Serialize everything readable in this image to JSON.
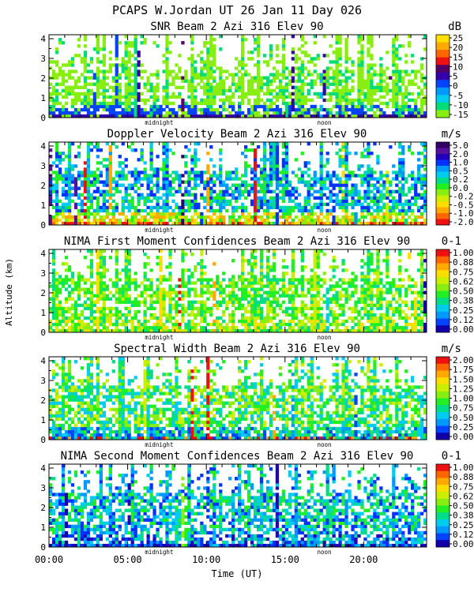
{
  "figure": {
    "title": "PCAPS W.Jordan UT  26 Jan 11 Day 026",
    "xlabel": "Time (UT)",
    "ylabel": "Altitude (km)",
    "x_ticks": [
      "00:00",
      "05:00",
      "10:00",
      "15:00",
      "20:00"
    ],
    "x_tick_hours": [
      0,
      5,
      10,
      15,
      20
    ],
    "y_ticks": [
      "0",
      "1",
      "2",
      "3",
      "4"
    ],
    "markers": [
      "midnight",
      "noon"
    ],
    "marker_hours": [
      7.0,
      17.5
    ]
  },
  "chart_data": [
    {
      "type": "heatmap",
      "title": "SNR Beam 2 Azi 316 Elev 90",
      "unit": "dB",
      "xlim": [
        0,
        24
      ],
      "ylim": [
        0,
        4.2
      ],
      "colorbar_ticks": [
        "25",
        "20",
        "15",
        "10",
        "5",
        "0",
        "-5",
        "-10",
        "-15"
      ],
      "colors": [
        "#88ee11",
        "#00dd77",
        "#00bbff",
        "#0044ff",
        "#3300aa",
        "#550066"
      ],
      "profile": {
        "thr": [
          0.99,
          0.32,
          0.48,
          0.52,
          0.58
        ],
        "bottom": [
          4,
          4,
          4,
          0,
          0
        ],
        "near": [
          3,
          3,
          3,
          1,
          0
        ],
        "mid": [
          1,
          0,
          0,
          0,
          0
        ]
      },
      "lower_top_km": 2.5
    },
    {
      "type": "heatmap",
      "title": "Doppler Velocity Beam 2 Azi 316 Elev 90",
      "unit": "m/s",
      "xlim": [
        0,
        24
      ],
      "ylim": [
        0,
        4.2
      ],
      "colorbar_ticks": [
        "5.0",
        "2.0",
        "1.0",
        "0.5",
        "0.2",
        "0.0",
        "-0.2",
        "-0.5",
        "-1.0",
        "-2.0"
      ],
      "colors": [
        "#330066",
        "#551199",
        "#2200bb",
        "#0033ff",
        "#0099ff",
        "#00ccee",
        "#00dd88",
        "#22ee22",
        "#88ee11",
        "#ccee00",
        "#ffdd00",
        "#ffaa00",
        "#ff6600",
        "#ee1111"
      ],
      "profile": {
        "thr": [
          0.99,
          0.3,
          0.5,
          0.58,
          0.62
        ],
        "bottom": [
          10,
          11,
          8,
          12,
          13
        ],
        "near": [
          8,
          9,
          10,
          7,
          11
        ],
        "mid": [
          5,
          6,
          4,
          7,
          3
        ]
      },
      "lower_top_km": 2.7
    },
    {
      "type": "heatmap",
      "title": "NIMA First Moment Confidences Beam 2 Azi 316 Elev 90",
      "unit": "0-1",
      "xlim": [
        0,
        24
      ],
      "ylim": [
        0,
        4.2
      ],
      "colorbar_ticks": [
        "1.00",
        "0.88",
        "0.75",
        "0.62",
        "0.50",
        "0.38",
        "0.25",
        "0.12",
        "0.00"
      ],
      "colors": [
        "#22ee22",
        "#88ee11",
        "#00dd88",
        "#ccee00",
        "#ffdd00",
        "#ffaa00",
        "#00ccee",
        "#0099ff",
        "#ee1111",
        "#1100aa"
      ],
      "profile": {
        "thr": [
          0.99,
          0.3,
          0.5,
          0.58,
          0.62
        ],
        "bottom": [
          1,
          4,
          2,
          3,
          0
        ],
        "near": [
          0,
          1,
          2,
          4,
          3
        ],
        "mid": [
          0,
          1,
          2,
          0,
          3
        ]
      },
      "lower_top_km": 2.7
    },
    {
      "type": "heatmap",
      "title": "Spectral Width Beam 2 Azi 316 Elev 90",
      "unit": "m/s",
      "xlim": [
        0,
        24
      ],
      "ylim": [
        0,
        4.2
      ],
      "colorbar_ticks": [
        "2.00",
        "1.75",
        "1.50",
        "1.25",
        "1.00",
        "0.75",
        "0.50",
        "0.25",
        "0.00"
      ],
      "colors": [
        "#88ee11",
        "#22ee22",
        "#00dd88",
        "#00ccee",
        "#0099ff",
        "#0044ff",
        "#ccee00",
        "#ffaa00",
        "#ee1111",
        "#1100aa"
      ],
      "profile": {
        "thr": [
          0.99,
          0.3,
          0.5,
          0.58,
          0.62
        ],
        "bottom": [
          8,
          7,
          2,
          3,
          5
        ],
        "near": [
          3,
          4,
          5,
          1,
          2
        ],
        "mid": [
          0,
          1,
          2,
          3,
          6
        ]
      },
      "lower_top_km": 2.7
    },
    {
      "type": "heatmap",
      "title": "NIMA Second Moment Confidences Beam 2 Azi 316 Elev 90",
      "unit": "0-1",
      "xlim": [
        0,
        24
      ],
      "ylim": [
        0,
        4.2
      ],
      "colorbar_ticks": [
        "1.00",
        "0.88",
        "0.75",
        "0.62",
        "0.50",
        "0.38",
        "0.25",
        "0.12",
        "0.00"
      ],
      "colors": [
        "#0033ff",
        "#2200bb",
        "#0099ff",
        "#00ccee",
        "#00dd88",
        "#22ee22",
        "#88ee11",
        "#1100aa"
      ],
      "profile": {
        "thr": [
          0.99,
          0.3,
          0.5,
          0.58,
          0.62
        ],
        "bottom": [
          0,
          1,
          2,
          7,
          3
        ],
        "near": [
          0,
          1,
          2,
          3,
          4
        ],
        "mid": [
          2,
          3,
          0,
          4,
          5
        ]
      },
      "lower_top_km": 2.7
    }
  ],
  "colorbars": [
    [
      "#ffe000",
      "#ffaa00",
      "#ff6600",
      "#ee1111",
      "#550066",
      "#3300aa",
      "#0044ff",
      "#0099ff",
      "#00ccee",
      "#00dd77",
      "#88ee11"
    ],
    [
      "#330066",
      "#551199",
      "#2200bb",
      "#0033ff",
      "#0099ff",
      "#00ccee",
      "#00dd88",
      "#22ee22",
      "#88ee11",
      "#ccee00",
      "#ffdd00",
      "#ffaa00",
      "#ff6600",
      "#ee1111"
    ],
    [
      "#ee1111",
      "#ff6600",
      "#ffaa00",
      "#ffdd00",
      "#ccee00",
      "#88ee11",
      "#22ee22",
      "#00dd88",
      "#00ccee",
      "#0099ff",
      "#0044ff",
      "#1100aa"
    ],
    [
      "#ee1111",
      "#ff6600",
      "#ffaa00",
      "#ffdd00",
      "#ccee00",
      "#88ee11",
      "#22ee22",
      "#00dd88",
      "#00ccee",
      "#0099ff",
      "#0044ff",
      "#1100aa"
    ],
    [
      "#ee1111",
      "#ff6600",
      "#ffaa00",
      "#ffdd00",
      "#ccee00",
      "#88ee11",
      "#22ee22",
      "#00dd88",
      "#00ccee",
      "#0099ff",
      "#0044ff",
      "#1100aa"
    ]
  ]
}
